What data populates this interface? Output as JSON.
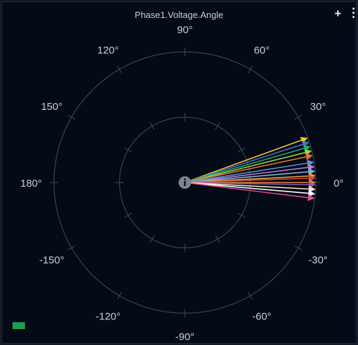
{
  "panel": {
    "title": "Phase1.Voltage.Angle",
    "add_icon": "plus-icon",
    "menu_icon": "vertical-dots-icon",
    "center_icon": "info-icon",
    "legend_color": "#1e9c4f"
  },
  "chart_data": {
    "type": "polar",
    "angle_labels": [
      {
        "angle": 90,
        "text": "90°"
      },
      {
        "angle": 60,
        "text": "60°"
      },
      {
        "angle": 30,
        "text": "30°"
      },
      {
        "angle": 0,
        "text": "0°"
      },
      {
        "angle": -30,
        "text": "-30°"
      },
      {
        "angle": -60,
        "text": "-60°"
      },
      {
        "angle": -90,
        "text": "-90°"
      },
      {
        "angle": -120,
        "text": "-120°"
      },
      {
        "angle": -150,
        "text": "-150°"
      },
      {
        "angle": 180,
        "text": "180°"
      },
      {
        "angle": 150,
        "text": "150°"
      },
      {
        "angle": 120,
        "text": "120°"
      }
    ],
    "rings": 2,
    "grid": true,
    "phasors": [
      {
        "angle": 20,
        "magnitude": 1.0,
        "color": "#f4c430"
      },
      {
        "angle": 18,
        "magnitude": 1.0,
        "color": "#3a78c2"
      },
      {
        "angle": 16,
        "magnitude": 1.0,
        "color": "#2eaa5c"
      },
      {
        "angle": 14,
        "magnitude": 1.0,
        "color": "#9ad14b"
      },
      {
        "angle": 12,
        "magnitude": 1.0,
        "color": "#e0742c"
      },
      {
        "angle": 9,
        "magnitude": 1.0,
        "color": "#5b8fd9"
      },
      {
        "angle": 7,
        "magnitude": 1.0,
        "color": "#b084cc"
      },
      {
        "angle": 5,
        "magnitude": 1.0,
        "color": "#7fb3e6"
      },
      {
        "angle": 3,
        "magnitude": 1.0,
        "color": "#f2a13a"
      },
      {
        "angle": 2,
        "magnitude": 1.0,
        "color": "#d94b3d"
      },
      {
        "angle": 0,
        "magnitude": 1.0,
        "color": "#e8893a"
      },
      {
        "angle": -1,
        "magnitude": 1.0,
        "color": "#9b59b6"
      },
      {
        "angle": -3,
        "magnitude": 1.0,
        "color": "#f4e9c8"
      },
      {
        "angle": -5,
        "magnitude": 1.0,
        "color": "#ffffff"
      },
      {
        "angle": -7,
        "magnitude": 1.0,
        "color": "#e24d8c"
      }
    ]
  }
}
